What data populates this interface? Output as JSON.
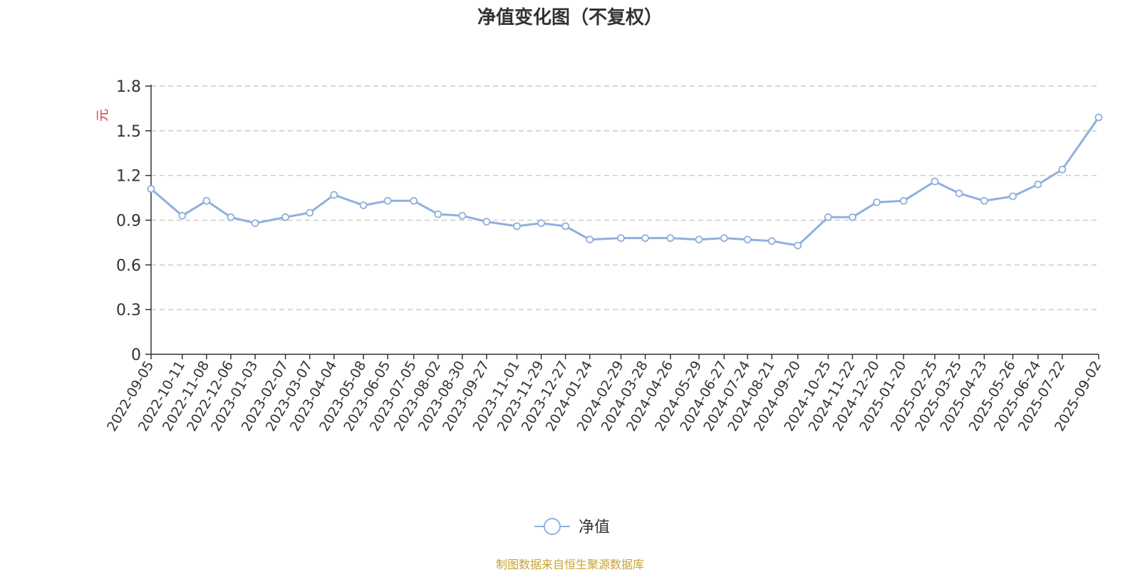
{
  "colors": {
    "line": "#8fb0dd",
    "grid": "#cccccc",
    "axis": "#333333",
    "ylabel": "#e03030",
    "source": "#c8a236"
  },
  "chart_data": {
    "type": "line",
    "title": "净值变化图（不复权）",
    "ylabel": "元",
    "xlabel": "",
    "ylim": [
      0,
      1.8
    ],
    "yticks": [
      0,
      0.3,
      0.6,
      0.9,
      1.2,
      1.5,
      1.8
    ],
    "ytick_labels": [
      "0",
      "0.3",
      "0.6",
      "0.9",
      "1.2",
      "1.5",
      "1.8"
    ],
    "grid": true,
    "legend_position": "bottom-center",
    "x_dates": [
      "2022-09-05",
      "2022-10-11",
      "2022-11-08",
      "2022-12-06",
      "2023-01-03",
      "2023-02-07",
      "2023-03-07",
      "2023-04-04",
      "2023-05-08",
      "2023-06-05",
      "2023-07-05",
      "2023-08-02",
      "2023-08-30",
      "2023-09-27",
      "2023-11-01",
      "2023-11-29",
      "2023-12-27",
      "2024-01-24",
      "2024-02-29",
      "2024-03-28",
      "2024-04-26",
      "2024-05-29",
      "2024-06-27",
      "2024-07-24",
      "2024-08-21",
      "2024-09-20",
      "2024-10-25",
      "2024-11-22",
      "2024-12-20",
      "2025-01-20",
      "2025-02-25",
      "2025-03-25",
      "2025-04-23",
      "2025-05-26",
      "2025-06-24",
      "2025-07-22",
      "2025-09-02"
    ],
    "series": [
      {
        "name": "净值",
        "values": [
          1.11,
          0.93,
          1.03,
          0.92,
          0.88,
          0.92,
          0.95,
          1.07,
          1.0,
          1.03,
          1.03,
          0.94,
          0.93,
          0.89,
          0.86,
          0.88,
          0.86,
          0.77,
          0.78,
          0.78,
          0.78,
          0.77,
          0.78,
          0.77,
          0.76,
          0.73,
          0.92,
          0.92,
          1.02,
          1.03,
          1.16,
          1.08,
          1.03,
          1.06,
          1.14,
          1.24,
          1.59
        ],
        "marker_indices": [
          0,
          1,
          2,
          3,
          4,
          5,
          6,
          7,
          8,
          9,
          10,
          11,
          12,
          13,
          14,
          15,
          16,
          17,
          18,
          19,
          20,
          21,
          22,
          23,
          24,
          25,
          26,
          27,
          28,
          29,
          30,
          31,
          32,
          33,
          34,
          35,
          36
        ]
      }
    ]
  },
  "footer": {
    "source": "制图数据来自恒生聚源数据库"
  }
}
